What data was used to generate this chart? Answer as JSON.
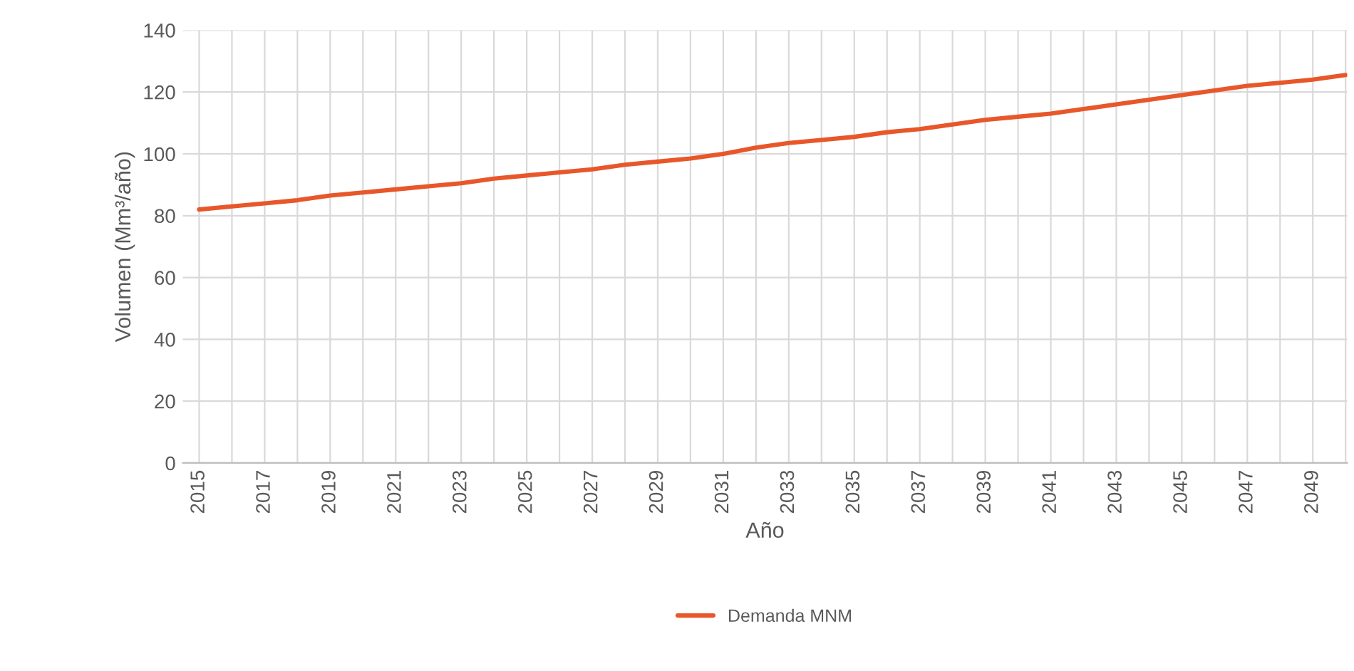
{
  "chart_data": {
    "type": "line",
    "xlabel": "Año",
    "ylabel": "Volumen (Mm³/año)",
    "categories": [
      "2015",
      null,
      "2017",
      null,
      "2019",
      null,
      "2021",
      null,
      "2023",
      null,
      "2025",
      null,
      "2027",
      null,
      "2029",
      null,
      "2031",
      null,
      "2033",
      null,
      "2035",
      null,
      "2037",
      null,
      "2039",
      null,
      "2041",
      null,
      "2043",
      null,
      "2045",
      null,
      "2047",
      null,
      "2049",
      null
    ],
    "series": [
      {
        "name": "Demanda MNM",
        "color": "#e8572a",
        "values": [
          82,
          83,
          84,
          85,
          86.5,
          87.5,
          88.5,
          89.5,
          90.5,
          92,
          93,
          94,
          95,
          96.5,
          97.5,
          98.5,
          100,
          102,
          103.5,
          104.5,
          105.5,
          107,
          108,
          109.5,
          111,
          112,
          113,
          114.5,
          116,
          117.5,
          119,
          120.5,
          122,
          123,
          124,
          125.5
        ]
      }
    ],
    "ylim": [
      0,
      140
    ],
    "yticks": [
      0,
      20,
      40,
      60,
      80,
      100,
      120,
      140
    ],
    "grid": true,
    "legend": "bottom",
    "marker": "none",
    "line_style": "solid"
  }
}
